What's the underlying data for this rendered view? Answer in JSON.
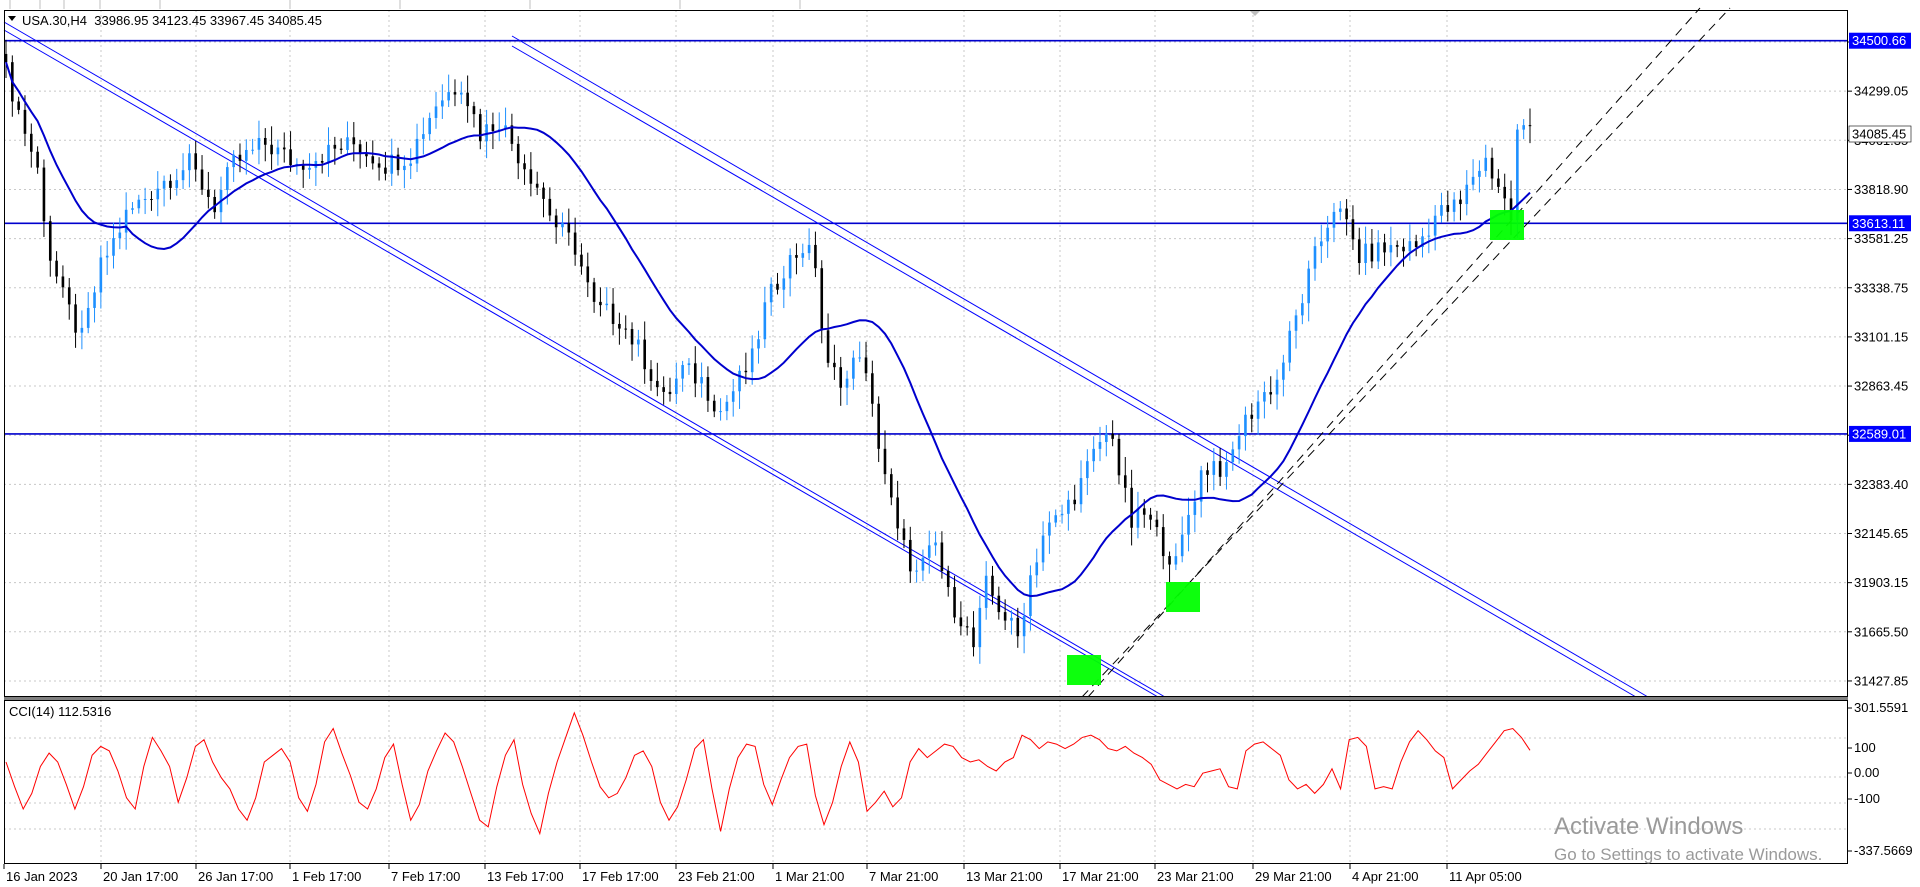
{
  "header": {
    "symbol_info": "USA.30,H4  33986.95 34123.45 33967.45 34085.45",
    "menu_icon": "triangle-down-icon"
  },
  "indicator": {
    "label": "CCI(14) 112.5316"
  },
  "watermark": {
    "line1": "Activate Windows",
    "line2": "Go to Settings to activate Windows."
  },
  "colors": {
    "bull_candle": "#1e90ff",
    "bear_candle": "#000000",
    "level_line": "#0000cd",
    "moving_average": "#0000cd",
    "channel": "#0000ff",
    "cci_line": "#ff0000",
    "marker": "#00ff00",
    "label_bg": "#0000ff",
    "label_text": "#ffffff"
  },
  "chart_data": [
    {
      "type": "candlestick",
      "title": "USA.30,H4",
      "ylim": [
        31310,
        34650
      ],
      "price_axis_ticks": [
        "34526.70",
        "34299.05",
        "34061.35",
        "33818.90",
        "33581.25",
        "33338.75",
        "33101.15",
        "32863.45",
        "32620.95",
        "32383.40",
        "32145.65",
        "31903.15",
        "31665.50",
        "31427.85"
      ],
      "time_axis_ticks": [
        "16 Jan 2023",
        "20 Jan 17:00",
        "26 Jan 17:00",
        "1 Feb 17:00",
        "7 Feb 17:00",
        "13 Feb 17:00",
        "17 Feb 17:00",
        "23 Feb 21:00",
        "1 Mar 21:00",
        "7 Mar 21:00",
        "13 Mar 21:00",
        "17 Mar 21:00",
        "23 Mar 21:00",
        "29 Mar 21:00",
        "4 Apr 21:00",
        "11 Apr 05:00"
      ],
      "horizontal_levels": [
        34500.66,
        33613.11,
        32589.01
      ],
      "horizontal_level_labels": [
        "34500.66",
        "33613.11",
        "32589.01"
      ],
      "current_price": 34085.45,
      "current_price_label": "34085.45",
      "close_path": [
        [
          0,
          34350
        ],
        [
          5,
          33870
        ],
        [
          7,
          33450
        ],
        [
          9,
          33250
        ],
        [
          12,
          33050
        ],
        [
          15,
          33400
        ],
        [
          19,
          33650
        ],
        [
          24,
          33800
        ],
        [
          29,
          33900
        ],
        [
          33,
          33700
        ],
        [
          36,
          33900
        ],
        [
          41,
          34000
        ],
        [
          46,
          33900
        ],
        [
          50,
          33950
        ],
        [
          55,
          34000
        ],
        [
          60,
          33900
        ],
        [
          64,
          33950
        ],
        [
          68,
          34200
        ],
        [
          72,
          34300
        ],
        [
          75,
          34050
        ],
        [
          78,
          34120
        ],
        [
          81,
          33950
        ],
        [
          84,
          33800
        ],
        [
          87,
          33600
        ],
        [
          90,
          33500
        ],
        [
          93,
          33200
        ],
        [
          97,
          33150
        ],
        [
          101,
          32950
        ],
        [
          104,
          32750
        ],
        [
          107,
          32900
        ],
        [
          110,
          32850
        ],
        [
          113,
          32700
        ],
        [
          115,
          32800
        ],
        [
          118,
          32950
        ],
        [
          120,
          33200
        ],
        [
          123,
          33400
        ],
        [
          126,
          33500
        ],
        [
          128,
          33420
        ],
        [
          129,
          33100
        ],
        [
          130,
          32900
        ],
        [
          133,
          32850
        ],
        [
          135,
          33000
        ],
        [
          137,
          32700
        ],
        [
          139,
          32400
        ],
        [
          141,
          32100
        ],
        [
          144,
          31900
        ],
        [
          147,
          32050
        ],
        [
          149,
          31800
        ],
        [
          151,
          31700
        ],
        [
          153,
          31550
        ],
        [
          155,
          31850
        ],
        [
          158,
          31700
        ],
        [
          160,
          31600
        ],
        [
          162,
          31900
        ],
        [
          164,
          32100
        ],
        [
          167,
          32200
        ],
        [
          170,
          32350
        ],
        [
          173,
          32550
        ],
        [
          175,
          32600
        ],
        [
          176,
          32400
        ],
        [
          178,
          32150
        ],
        [
          180,
          32200
        ],
        [
          183,
          32050
        ],
        [
          185,
          31950
        ],
        [
          187,
          32200
        ],
        [
          189,
          32400
        ],
        [
          191,
          32450
        ],
        [
          193,
          32400
        ],
        [
          195,
          32600
        ],
        [
          198,
          32750
        ],
        [
          201,
          32850
        ],
        [
          204,
          33150
        ],
        [
          207,
          33450
        ],
        [
          210,
          33700
        ],
        [
          212,
          33600
        ],
        [
          214,
          33450
        ],
        [
          217,
          33480
        ],
        [
          220,
          33500
        ],
        [
          223,
          33500
        ],
        [
          226,
          33650
        ],
        [
          228,
          33680
        ],
        [
          230,
          33700
        ],
        [
          232,
          33850
        ],
        [
          234,
          33920
        ],
        [
          236,
          33800
        ],
        [
          238,
          33640
        ],
        [
          239,
          34050
        ],
        [
          241,
          34085.45
        ]
      ]
    },
    {
      "type": "line",
      "title": "CCI(14) 112.5316",
      "ylim": [
        -337.5669,
        301.5591
      ],
      "axis_ticks": [
        "301.5591",
        "100",
        "0.00",
        "-100",
        "-337.5669"
      ],
      "series": [
        {
          "values": [
            60,
            -50,
            -150,
            -80,
            40,
            100,
            60,
            -40,
            -150,
            -50,
            90,
            130,
            110,
            20,
            -100,
            -150,
            40,
            170,
            110,
            40,
            -120,
            -10,
            130,
            160,
            60,
            -10,
            -60,
            -150,
            -200,
            -100,
            60,
            90,
            120,
            60,
            -100,
            -160,
            -40,
            150,
            210,
            100,
            0,
            -120,
            -150,
            -60,
            80,
            140,
            -40,
            -200,
            -130,
            20,
            110,
            190,
            150,
            40,
            -80,
            -200,
            -230,
            -50,
            90,
            160,
            -40,
            -170,
            -260,
            -80,
            60,
            170,
            280,
            180,
            60,
            -50,
            -100,
            -80,
            -10,
            90,
            110,
            40,
            -120,
            -200,
            -140,
            -20,
            120,
            160,
            -60,
            -250,
            -60,
            80,
            140,
            130,
            -40,
            -130,
            -20,
            80,
            130,
            140,
            -90,
            -220,
            -120,
            40,
            150,
            60,
            -160,
            -120,
            -70,
            -140,
            -100,
            60,
            120,
            80,
            110,
            140,
            130,
            80,
            60,
            70,
            40,
            20,
            60,
            80,
            180,
            160,
            120,
            150,
            140,
            120,
            140,
            170,
            180,
            160,
            120,
            110,
            130,
            100,
            80,
            50,
            -20,
            -40,
            -60,
            -40,
            -50,
            10,
            20,
            30,
            -50,
            -60,
            110,
            140,
            150,
            120,
            90,
            -20,
            -60,
            -40,
            -80,
            -40,
            30,
            -60,
            160,
            170,
            130,
            -60,
            -50,
            -60,
            60,
            150,
            200,
            160,
            110,
            80,
            -60,
            -20,
            20,
            50,
            100,
            150,
            200,
            210,
            170,
            112.53
          ]
        }
      ]
    }
  ]
}
